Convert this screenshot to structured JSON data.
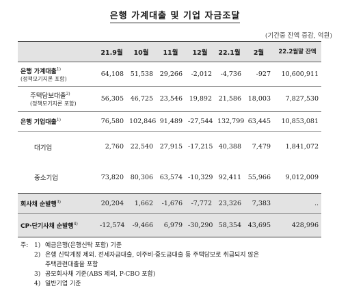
{
  "title": "은행 가계대출 및 기업 자금조달",
  "unit_note": "(기간중 잔액 증감, 억원)",
  "header": [
    "",
    "21.9월",
    "10월",
    "11월",
    "12월",
    "22.1월",
    "2월",
    "22.2월말 잔액"
  ],
  "rows": {
    "household": {
      "label": "은행 가계대출",
      "sup": "1)",
      "sub": "(정책모기지론 포함)",
      "values": [
        "64,108",
        "51,538",
        "29,266",
        "-2,012",
        "-4,736",
        "-927",
        "10,600,911"
      ]
    },
    "mortgage": {
      "label": "주택담보대출",
      "sup": "2)",
      "sub": "(정책모기지론 포함)",
      "values": [
        "56,305",
        "46,725",
        "23,546",
        "19,892",
        "21,586",
        "18,003",
        "7,827,530"
      ]
    },
    "corporate": {
      "label": "은행 기업대출",
      "sup": "1)",
      "values": [
        "76,580",
        "102,846",
        "91,489",
        "-27,544",
        "132,799",
        "63,445",
        "10,853,081"
      ]
    },
    "large": {
      "label": "대기업",
      "values": [
        "2,760",
        "22,540",
        "27,915",
        "-17,215",
        "40,388",
        "7,479",
        "1,841,072"
      ]
    },
    "sme": {
      "label": "중소기업",
      "values": [
        "73,820",
        "80,306",
        "63,574",
        "-10,329",
        "92,411",
        "55,966",
        "9,012,009"
      ]
    },
    "bonds": {
      "label": "회사채 순발행",
      "sup": "3)",
      "values": [
        "20,204",
        "1,662",
        "-1,676",
        "-7,772",
        "23,326",
        "7,383",
        ".."
      ]
    },
    "cp": {
      "label": "CP·단기사채 순발행",
      "sup": "4)",
      "values": [
        "-12,574",
        "-9,466",
        "6,979",
        "-30,290",
        "58,354",
        "43,695",
        "428,996"
      ]
    }
  },
  "notes": {
    "prefix": "주:",
    "n1": {
      "num": "1)",
      "text": "예금은행(은행신탁 포함) 기준"
    },
    "n2": {
      "num": "2)",
      "text": "은행 신탁계정 제외. 전세자금대출, 이주비·중도금대출 등 주택담보로 취급되지 않은",
      "cont": "주택관련대출을 포함"
    },
    "n3": {
      "num": "3)",
      "text": "공모회사채 기준(ABS 제외, P-CBO 포함)"
    },
    "n4": {
      "num": "4)",
      "text": "일반기업 기준"
    }
  }
}
